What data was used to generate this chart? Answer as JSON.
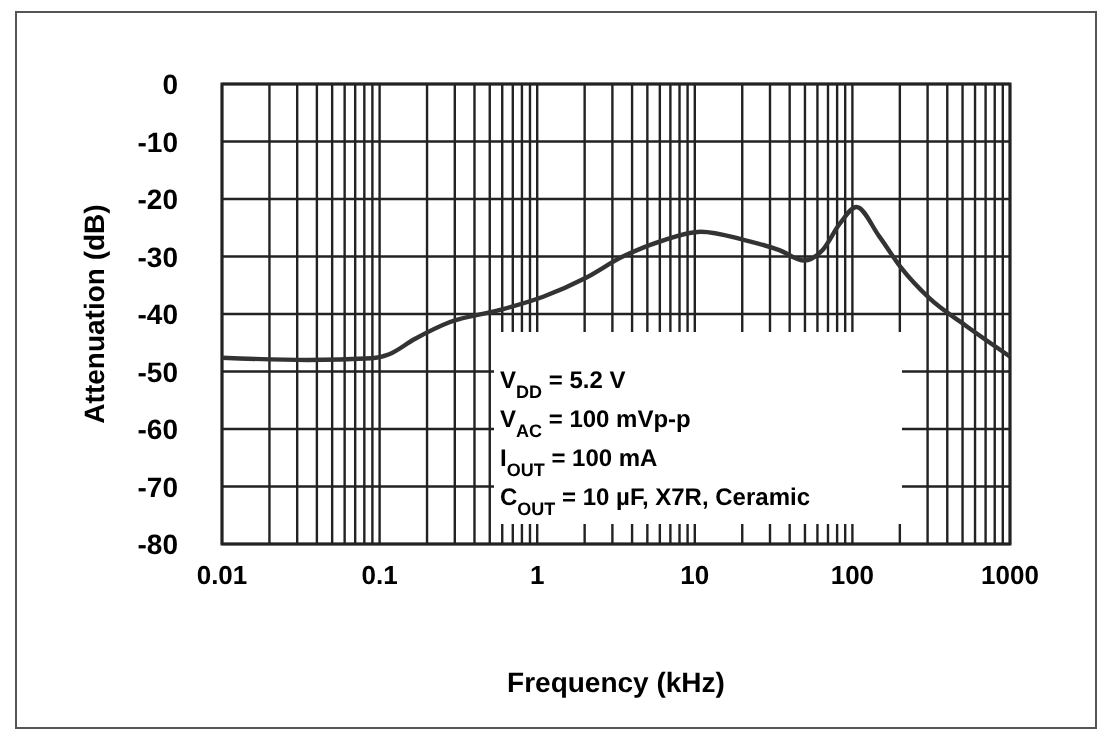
{
  "chart_data": {
    "type": "line",
    "xlabel": "Frequency (kHz)",
    "ylabel": "Attenuation (dB)",
    "log": "x",
    "grid": true,
    "line_style": "solid",
    "xlim": [
      0.01,
      1000
    ],
    "xticks": [
      0.01,
      0.1,
      1,
      10,
      100,
      1000
    ],
    "ylim": [
      -80,
      0
    ],
    "yticks": [
      0,
      -10,
      -20,
      -30,
      -40,
      -50,
      -60,
      -70,
      -80
    ],
    "series": [
      {
        "color": "#333333",
        "x": [
          0.01,
          0.035,
          0.089,
          0.115,
          0.166,
          0.28,
          0.58,
          1.09,
          2.04,
          3.44,
          6.46,
          10.9,
          20.4,
          34.4,
          49.5,
          64.5,
          83.6,
          106,
          148,
          203,
          309,
          522,
          1000
        ],
        "values": [
          -47.6,
          -48,
          -47.7,
          -47,
          -44.4,
          -41.4,
          -39.3,
          -37,
          -33.7,
          -30.1,
          -27.1,
          -25.7,
          -27.1,
          -28.9,
          -30.7,
          -28.9,
          -24.2,
          -21.4,
          -26.5,
          -31.9,
          -37.3,
          -42,
          -47.4
        ]
      }
    ],
    "annotations": [
      "V$_{DD}$ = 5.2 V",
      "V$_{AC}$ = 100 mVp-p",
      "I$_{OUT}$ = 100 mA",
      "C$_{OUT}$ = 10 µF, X7R, Ceramic"
    ]
  }
}
